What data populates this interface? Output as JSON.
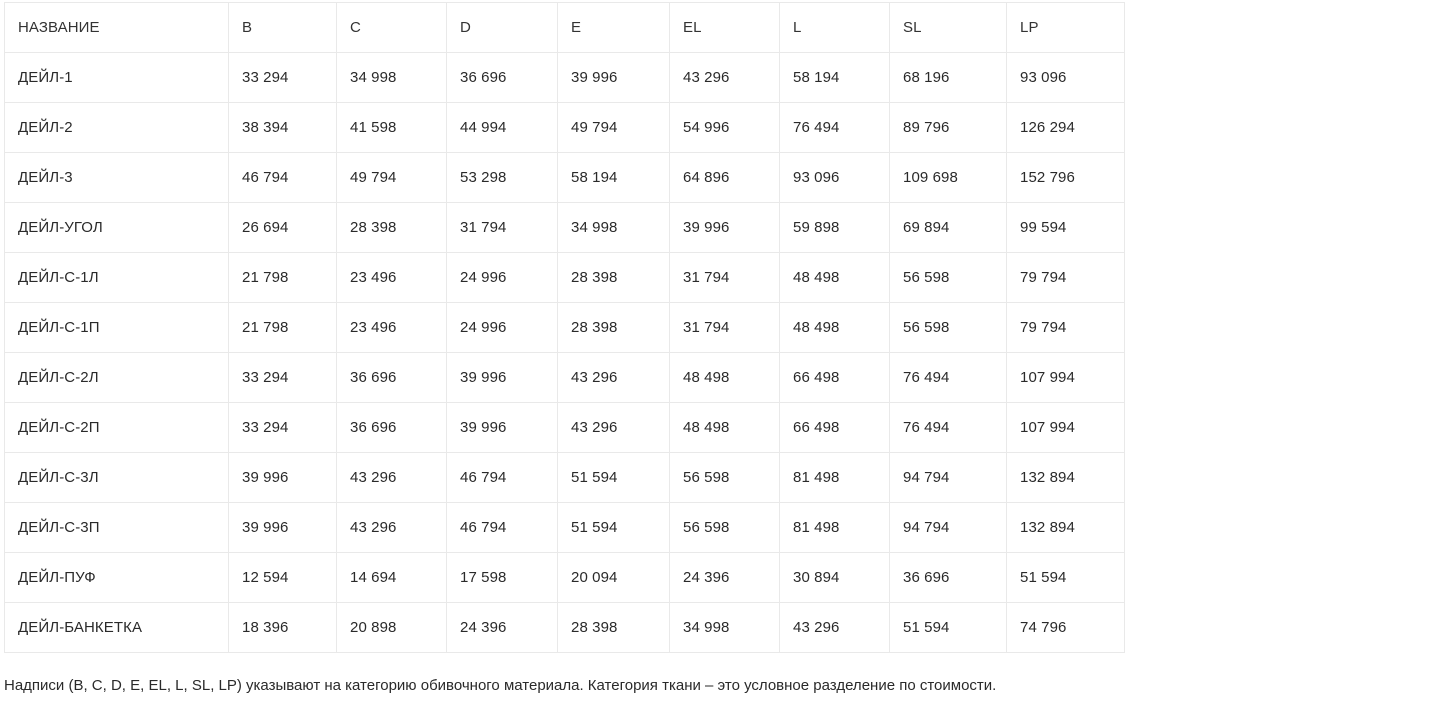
{
  "table": {
    "headers": [
      "НАЗВАНИЕ",
      "B",
      "C",
      "D",
      "E",
      "EL",
      "L",
      "SL",
      "LP"
    ],
    "rows": [
      [
        "ДЕЙЛ-1",
        "33 294",
        "34 998",
        "36 696",
        "39 996",
        "43 296",
        "58 194",
        "68 196",
        "93 096"
      ],
      [
        "ДЕЙЛ-2",
        "38 394",
        "41 598",
        "44 994",
        "49 794",
        "54 996",
        "76 494",
        "89 796",
        "126 294"
      ],
      [
        "ДЕЙЛ-3",
        "46 794",
        "49 794",
        "53 298",
        "58 194",
        "64 896",
        "93 096",
        "109 698",
        "152 796"
      ],
      [
        "ДЕЙЛ-УГОЛ",
        "26 694",
        "28 398",
        "31 794",
        "34 998",
        "39 996",
        "59 898",
        "69 894",
        "99 594"
      ],
      [
        "ДЕЙЛ-С-1Л",
        "21 798",
        "23 496",
        "24 996",
        "28 398",
        "31 794",
        "48 498",
        "56 598",
        "79 794"
      ],
      [
        "ДЕЙЛ-С-1П",
        "21 798",
        "23 496",
        "24 996",
        "28 398",
        "31 794",
        "48 498",
        "56 598",
        "79 794"
      ],
      [
        "ДЕЙЛ-С-2Л",
        "33 294",
        "36 696",
        "39 996",
        "43 296",
        "48 498",
        "66 498",
        "76 494",
        "107 994"
      ],
      [
        "ДЕЙЛ-С-2П",
        "33 294",
        "36 696",
        "39 996",
        "43 296",
        "48 498",
        "66 498",
        "76 494",
        "107 994"
      ],
      [
        "ДЕЙЛ-С-3Л",
        "39 996",
        "43 296",
        "46 794",
        "51 594",
        "56 598",
        "81 498",
        "94 794",
        "132 894"
      ],
      [
        "ДЕЙЛ-С-3П",
        "39 996",
        "43 296",
        "46 794",
        "51 594",
        "56 598",
        "81 498",
        "94 794",
        "132 894"
      ],
      [
        "ДЕЙЛ-ПУФ",
        "12 594",
        "14 694",
        "17 598",
        "20 094",
        "24 396",
        "30 894",
        "36 696",
        "51 594"
      ],
      [
        "ДЕЙЛ-БАНКЕТКА",
        "18 396",
        "20 898",
        "24 396",
        "28 398",
        "34 998",
        "43 296",
        "51 594",
        "74 796"
      ]
    ]
  },
  "note": "Надписи (B, C, D, E, EL, L, SL, LP) указывают на категорию обивочного материала. Категория ткани – это условное разделение по стоимости."
}
